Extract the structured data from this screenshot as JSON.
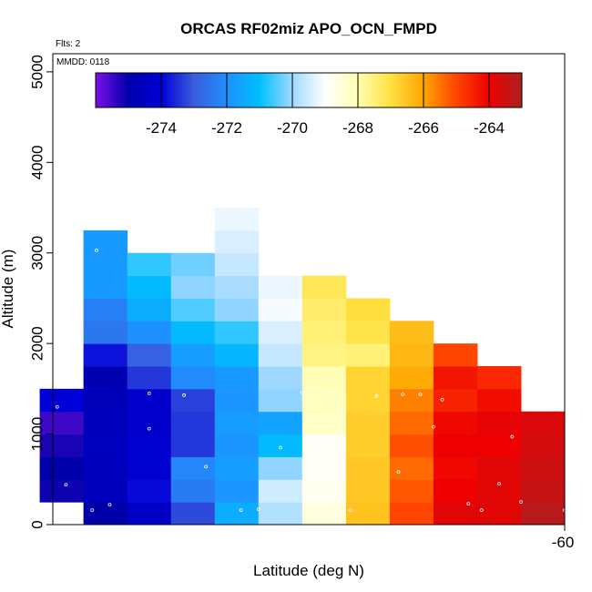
{
  "chart_data": {
    "type": "heatmap",
    "title": "ORCAS RF02miz APO_OCN_FMPD",
    "xlabel": "Latitude (deg N)",
    "ylabel": "Altitude (m)",
    "note_flights": "Flts: 2",
    "note_date": "MMDD: 0118",
    "xlim": [
      -65.85,
      -60
    ],
    "ylim": [
      0,
      5200
    ],
    "x_ticks": [
      -60
    ],
    "y_ticks": [
      0,
      1000,
      2000,
      3000,
      4000,
      5000
    ],
    "colorbar": {
      "range": [
        -276,
        -263
      ],
      "ticks": [
        -274,
        -272,
        -270,
        -268,
        -266,
        -264
      ],
      "stops": [
        "#7b10e8",
        "#0000aa",
        "#0000d8",
        "#3a5cdc",
        "#1e90ff",
        "#00bfff",
        "#9fd8ff",
        "#ffffff",
        "#ffffb0",
        "#ffe040",
        "#ffa500",
        "#ff4500",
        "#ee0000",
        "#aa2020"
      ]
    },
    "cell_width_deg": 0.5,
    "cell_height_m": 250,
    "columns": [
      {
        "x": -65.25,
        "y0": 0,
        "values": [
          -275.0
        ]
      },
      {
        "x": -64.75,
        "y0": 0,
        "values": [
          -274.4
        ]
      },
      {
        "x": -64.25,
        "y0": 0,
        "values": [
          -273.2
        ]
      },
      {
        "x": -63.75,
        "y0": 0,
        "values": [
          -271.4
        ]
      },
      {
        "x": -63.25,
        "y0": 0,
        "values": [
          -269.8
        ]
      },
      {
        "x": -62.75,
        "y0": 0,
        "values": [
          -268.6
        ]
      },
      {
        "x": -62.25,
        "y0": 0,
        "values": [
          -266.5
        ]
      },
      {
        "x": -61.75,
        "y0": 0,
        "values": [
          -265.0
        ]
      },
      {
        "x": -61.25,
        "y0": 0,
        "values": [
          -263.8
        ]
      },
      {
        "x": -60.75,
        "y0": 0,
        "values": [
          -263.8
        ]
      },
      {
        "x": -60.25,
        "y0": 0,
        "values": [
          -263.2
        ]
      },
      {
        "x": -65.75,
        "y0": 250,
        "values": [
          -275.1,
          -275.0,
          -275.2,
          -275.5,
          -274.0
        ]
      },
      {
        "x": -65.25,
        "y0": 250,
        "values": [
          -274.6,
          -274.6,
          -274.5,
          -274.6,
          -274.7,
          -274.8,
          -273.8,
          -272.5,
          -272.3,
          -271.8,
          -271.8,
          -271.8
        ]
      },
      {
        "x": -64.75,
        "y0": 250,
        "values": [
          -273.9,
          -274.2,
          -274.2,
          -274.3,
          -274.3,
          -273.4,
          -272.9,
          -272.0,
          -271.4,
          -271.1,
          -270.7
        ]
      },
      {
        "x": -64.25,
        "y0": 250,
        "values": [
          -272.4,
          -272.2,
          -273.4,
          -273.4,
          -273.3,
          -272.1,
          -271.7,
          -271.1,
          -270.5,
          -270.1,
          -270.3
        ]
      },
      {
        "x": -63.75,
        "y0": 250,
        "values": [
          -271.9,
          -271.7,
          -271.9,
          -271.7,
          -271.9,
          -271.8,
          -271.2,
          -270.7,
          -270.1,
          -269.9,
          -269.6,
          -269.4,
          -269.2
        ]
      },
      {
        "x": -63.25,
        "y0": 250,
        "values": [
          -269.5,
          -270.1,
          -271.1,
          -271.6,
          -270.1,
          -270.0,
          -269.6,
          -269.4,
          -269.1,
          -269.2
        ]
      },
      {
        "x": -62.75,
        "y0": 250,
        "values": [
          -268.8,
          -268.9,
          -268.9,
          -268.3,
          -268.2,
          -268.1,
          -267.6,
          -267.5,
          -267.4,
          -267.2
        ]
      },
      {
        "x": -62.25,
        "y0": 250,
        "values": [
          -266.6,
          -266.6,
          -266.7,
          -266.7,
          -266.8,
          -266.8,
          -267.5,
          -267.1,
          -267.0
        ]
      },
      {
        "x": -61.75,
        "y0": 250,
        "values": [
          -265.2,
          -265.4,
          -265.1,
          -265.4,
          -265.6,
          -266.1,
          -266.3,
          -266.4
        ]
      },
      {
        "x": -61.25,
        "y0": 250,
        "values": [
          -264.0,
          -264.1,
          -264.0,
          -264.1,
          -264.5,
          -264.3,
          -265.0
        ]
      },
      {
        "x": -60.75,
        "y0": 250,
        "values": [
          -263.8,
          -263.8,
          -264.0,
          -263.9,
          -264.2,
          -264.6
        ]
      },
      {
        "x": -60.25,
        "y0": 250,
        "values": [
          -263.4,
          -263.5,
          -263.6,
          -263.7
        ]
      }
    ],
    "sample_points": [
      {
        "x": -65.4,
        "y": 160
      },
      {
        "x": -65.2,
        "y": 220
      },
      {
        "x": -63.7,
        "y": 160
      },
      {
        "x": -63.5,
        "y": 170
      },
      {
        "x": -62.6,
        "y": 160
      },
      {
        "x": -62.45,
        "y": 160
      },
      {
        "x": -61.1,
        "y": 230
      },
      {
        "x": -60.95,
        "y": 160
      },
      {
        "x": -60.5,
        "y": 250
      },
      {
        "x": -60.0,
        "y": 160
      },
      {
        "x": -65.7,
        "y": 440
      },
      {
        "x": -64.1,
        "y": 640
      },
      {
        "x": -63.25,
        "y": 850
      },
      {
        "x": -61.9,
        "y": 580
      },
      {
        "x": -60.75,
        "y": 450
      },
      {
        "x": -64.75,
        "y": 1060
      },
      {
        "x": -61.5,
        "y": 1080
      },
      {
        "x": -60.6,
        "y": 970
      },
      {
        "x": -65.8,
        "y": 1300
      },
      {
        "x": -64.75,
        "y": 1450
      },
      {
        "x": -64.35,
        "y": 1430
      },
      {
        "x": -63.0,
        "y": 1460
      },
      {
        "x": -62.7,
        "y": 1450
      },
      {
        "x": -62.15,
        "y": 1420
      },
      {
        "x": -61.85,
        "y": 1440
      },
      {
        "x": -61.65,
        "y": 1440
      },
      {
        "x": -61.4,
        "y": 1380
      },
      {
        "x": -60.45,
        "y": 1310
      },
      {
        "x": -60.2,
        "y": 1450
      },
      {
        "x": -65.9,
        "y": 2160
      },
      {
        "x": -60.95,
        "y": 1840
      },
      {
        "x": -65.35,
        "y": 3030
      }
    ]
  }
}
